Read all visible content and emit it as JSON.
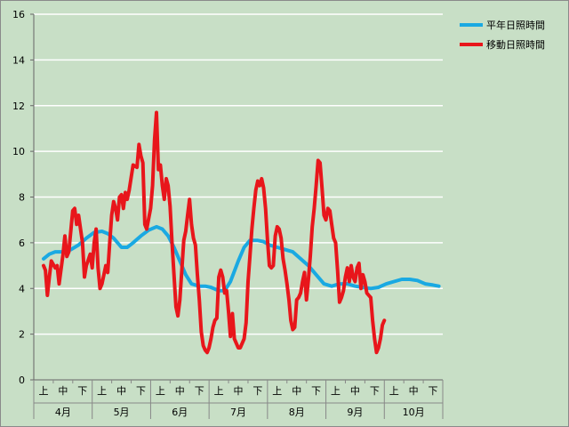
{
  "chart_data": {
    "type": "line",
    "ylim": [
      0,
      16
    ],
    "yticks": [
      0,
      2,
      4,
      6,
      8,
      10,
      12,
      14,
      16
    ],
    "grid": true,
    "legend_position": "top-right",
    "x_dekad_labels": [
      "上",
      "中",
      "下",
      "上",
      "中",
      "下",
      "上",
      "中",
      "下",
      "上",
      "中",
      "下",
      "上",
      "中",
      "下",
      "上",
      "中",
      "下",
      "上",
      "中",
      "下"
    ],
    "x_month_labels": [
      "4月",
      "5月",
      "6月",
      "7月",
      "8月",
      "9月",
      "10月"
    ],
    "x_count": 21,
    "series": [
      {
        "name": "平年日照時間",
        "color": "#1aa9e2",
        "points": [
          [
            0,
            5.3
          ],
          [
            0.3,
            5.5
          ],
          [
            0.6,
            5.6
          ],
          [
            1,
            5.6
          ],
          [
            1.4,
            5.7
          ],
          [
            1.8,
            5.9
          ],
          [
            2.2,
            6.2
          ],
          [
            2.6,
            6.45
          ],
          [
            3,
            6.5
          ],
          [
            3.3,
            6.4
          ],
          [
            3.6,
            6.2
          ],
          [
            4,
            5.8
          ],
          [
            4.3,
            5.8
          ],
          [
            4.6,
            6.0
          ],
          [
            5,
            6.3
          ],
          [
            5.4,
            6.55
          ],
          [
            5.8,
            6.7
          ],
          [
            6.1,
            6.6
          ],
          [
            6.4,
            6.3
          ],
          [
            6.7,
            5.8
          ],
          [
            7,
            5.2
          ],
          [
            7.3,
            4.6
          ],
          [
            7.6,
            4.2
          ],
          [
            8,
            4.1
          ],
          [
            8.3,
            4.1
          ],
          [
            8.6,
            4.05
          ],
          [
            9,
            3.9
          ],
          [
            9.3,
            3.9
          ],
          [
            9.6,
            4.3
          ],
          [
            10,
            5.2
          ],
          [
            10.3,
            5.8
          ],
          [
            10.6,
            6.1
          ],
          [
            11,
            6.1
          ],
          [
            11.3,
            6.05
          ],
          [
            11.6,
            5.9
          ],
          [
            12,
            5.8
          ],
          [
            12.4,
            5.7
          ],
          [
            12.8,
            5.6
          ],
          [
            13.2,
            5.3
          ],
          [
            13.6,
            5.0
          ],
          [
            14,
            4.6
          ],
          [
            14.4,
            4.2
          ],
          [
            14.8,
            4.1
          ],
          [
            15.2,
            4.2
          ],
          [
            15.6,
            4.2
          ],
          [
            16,
            4.1
          ],
          [
            16.4,
            4.05
          ],
          [
            16.8,
            4.0
          ],
          [
            17.2,
            4.05
          ],
          [
            17.6,
            4.2
          ],
          [
            18,
            4.3
          ],
          [
            18.4,
            4.4
          ],
          [
            18.8,
            4.4
          ],
          [
            19.2,
            4.35
          ],
          [
            19.6,
            4.2
          ],
          [
            20,
            4.15
          ],
          [
            20.3,
            4.1
          ]
        ]
      },
      {
        "name": "移動日照時間",
        "color": "#e8161b",
        "points": [
          [
            0,
            5.0
          ],
          [
            0.1,
            4.8
          ],
          [
            0.2,
            3.7
          ],
          [
            0.3,
            4.5
          ],
          [
            0.4,
            5.2
          ],
          [
            0.6,
            4.9
          ],
          [
            0.7,
            5.0
          ],
          [
            0.8,
            4.2
          ],
          [
            1.0,
            5.5
          ],
          [
            1.1,
            6.3
          ],
          [
            1.2,
            5.4
          ],
          [
            1.3,
            5.6
          ],
          [
            1.5,
            7.4
          ],
          [
            1.6,
            7.5
          ],
          [
            1.7,
            6.8
          ],
          [
            1.8,
            7.2
          ],
          [
            1.9,
            6.6
          ],
          [
            2.0,
            6.0
          ],
          [
            2.1,
            4.5
          ],
          [
            2.2,
            5.0
          ],
          [
            2.4,
            5.5
          ],
          [
            2.5,
            4.9
          ],
          [
            2.6,
            6.0
          ],
          [
            2.7,
            6.6
          ],
          [
            2.8,
            4.9
          ],
          [
            2.9,
            4.0
          ],
          [
            3.0,
            4.2
          ],
          [
            3.2,
            5.0
          ],
          [
            3.3,
            4.7
          ],
          [
            3.4,
            6.0
          ],
          [
            3.5,
            7.2
          ],
          [
            3.6,
            7.8
          ],
          [
            3.7,
            7.5
          ],
          [
            3.8,
            7.0
          ],
          [
            3.9,
            8.0
          ],
          [
            4.0,
            8.1
          ],
          [
            4.1,
            7.5
          ],
          [
            4.2,
            8.2
          ],
          [
            4.3,
            7.9
          ],
          [
            4.4,
            8.3
          ],
          [
            4.6,
            9.4
          ],
          [
            4.8,
            9.3
          ],
          [
            4.9,
            10.3
          ],
          [
            5.0,
            9.8
          ],
          [
            5.1,
            9.5
          ],
          [
            5.2,
            6.8
          ],
          [
            5.3,
            6.6
          ],
          [
            5.5,
            7.5
          ],
          [
            5.6,
            8.5
          ],
          [
            5.7,
            10.5
          ],
          [
            5.8,
            11.7
          ],
          [
            5.9,
            9.2
          ],
          [
            6.0,
            9.4
          ],
          [
            6.1,
            8.5
          ],
          [
            6.2,
            7.9
          ],
          [
            6.3,
            8.8
          ],
          [
            6.4,
            8.5
          ],
          [
            6.5,
            7.6
          ],
          [
            6.6,
            6.0
          ],
          [
            6.7,
            4.6
          ],
          [
            6.8,
            3.2
          ],
          [
            6.9,
            2.8
          ],
          [
            7.0,
            3.5
          ],
          [
            7.1,
            4.8
          ],
          [
            7.2,
            6.1
          ],
          [
            7.3,
            6.5
          ],
          [
            7.4,
            7.2
          ],
          [
            7.5,
            7.9
          ],
          [
            7.6,
            6.8
          ],
          [
            7.7,
            6.2
          ],
          [
            7.8,
            5.9
          ],
          [
            7.9,
            4.6
          ],
          [
            8.0,
            3.5
          ],
          [
            8.1,
            2.1
          ],
          [
            8.2,
            1.5
          ],
          [
            8.3,
            1.3
          ],
          [
            8.4,
            1.2
          ],
          [
            8.5,
            1.4
          ],
          [
            8.6,
            1.8
          ],
          [
            8.7,
            2.3
          ],
          [
            8.8,
            2.6
          ],
          [
            8.9,
            2.7
          ],
          [
            9.0,
            4.5
          ],
          [
            9.1,
            4.8
          ],
          [
            9.2,
            4.5
          ],
          [
            9.3,
            3.8
          ],
          [
            9.4,
            3.9
          ],
          [
            9.5,
            3.0
          ],
          [
            9.6,
            1.9
          ],
          [
            9.7,
            2.9
          ],
          [
            9.8,
            1.8
          ],
          [
            9.9,
            1.6
          ],
          [
            10.0,
            1.4
          ],
          [
            10.1,
            1.4
          ],
          [
            10.2,
            1.6
          ],
          [
            10.3,
            1.8
          ],
          [
            10.4,
            2.5
          ],
          [
            10.5,
            4.3
          ],
          [
            10.6,
            5.4
          ],
          [
            10.7,
            6.6
          ],
          [
            10.8,
            7.5
          ],
          [
            10.9,
            8.3
          ],
          [
            11.0,
            8.7
          ],
          [
            11.1,
            8.5
          ],
          [
            11.2,
            8.8
          ],
          [
            11.3,
            8.4
          ],
          [
            11.4,
            7.5
          ],
          [
            11.5,
            6.1
          ],
          [
            11.6,
            5.0
          ],
          [
            11.7,
            4.9
          ],
          [
            11.8,
            5.0
          ],
          [
            11.9,
            6.3
          ],
          [
            12.0,
            6.7
          ],
          [
            12.1,
            6.6
          ],
          [
            12.2,
            6.2
          ],
          [
            12.3,
            5.3
          ],
          [
            12.4,
            4.8
          ],
          [
            12.5,
            4.2
          ],
          [
            12.6,
            3.5
          ],
          [
            12.7,
            2.6
          ],
          [
            12.8,
            2.2
          ],
          [
            12.9,
            2.3
          ],
          [
            13.0,
            3.5
          ],
          [
            13.1,
            3.6
          ],
          [
            13.2,
            3.8
          ],
          [
            13.3,
            4.3
          ],
          [
            13.4,
            4.7
          ],
          [
            13.5,
            3.5
          ],
          [
            13.6,
            4.4
          ],
          [
            13.7,
            5.4
          ],
          [
            13.8,
            6.7
          ],
          [
            13.9,
            7.5
          ],
          [
            14.0,
            8.5
          ],
          [
            14.1,
            9.6
          ],
          [
            14.2,
            9.5
          ],
          [
            14.3,
            8.4
          ],
          [
            14.4,
            7.2
          ],
          [
            14.5,
            7.0
          ],
          [
            14.6,
            7.5
          ],
          [
            14.7,
            7.4
          ],
          [
            14.8,
            6.8
          ],
          [
            14.9,
            6.2
          ],
          [
            15.0,
            6.0
          ],
          [
            15.1,
            4.8
          ],
          [
            15.2,
            3.4
          ],
          [
            15.3,
            3.6
          ],
          [
            15.4,
            3.9
          ],
          [
            15.5,
            4.5
          ],
          [
            15.6,
            4.9
          ],
          [
            15.7,
            4.3
          ],
          [
            15.8,
            5.0
          ],
          [
            15.9,
            4.5
          ],
          [
            16.0,
            4.3
          ],
          [
            16.1,
            4.9
          ],
          [
            16.2,
            5.1
          ],
          [
            16.3,
            4.0
          ],
          [
            16.4,
            4.6
          ],
          [
            16.5,
            4.3
          ],
          [
            16.6,
            3.8
          ],
          [
            16.7,
            3.7
          ],
          [
            16.8,
            3.6
          ],
          [
            16.9,
            2.6
          ],
          [
            17.0,
            1.8
          ],
          [
            17.1,
            1.2
          ],
          [
            17.2,
            1.4
          ],
          [
            17.3,
            1.8
          ],
          [
            17.4,
            2.4
          ],
          [
            17.5,
            2.6
          ]
        ]
      }
    ]
  }
}
